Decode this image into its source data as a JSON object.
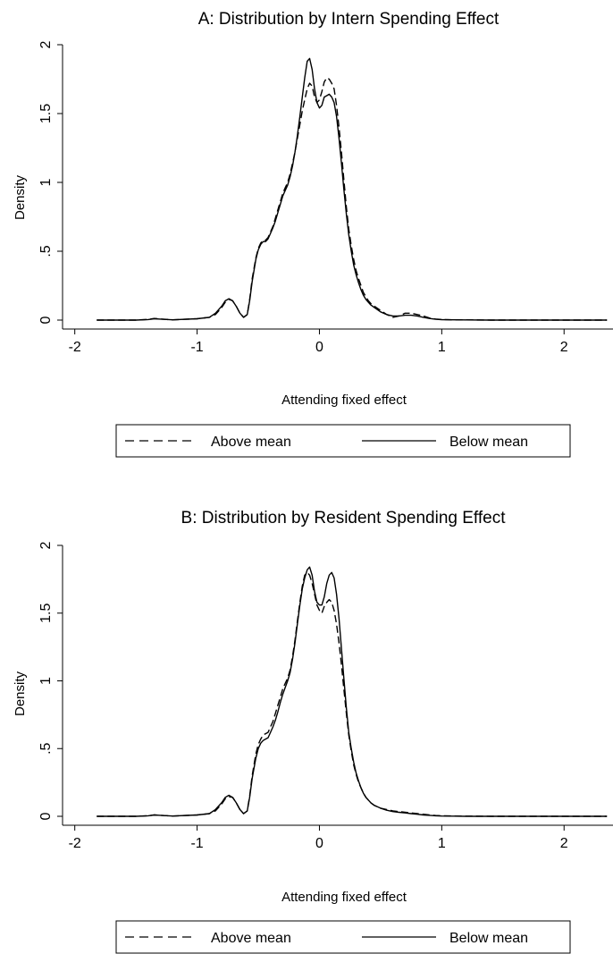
{
  "chart_data": [
    {
      "type": "line",
      "title": "A: Distribution by Intern Spending Effect",
      "xlabel": "Attending fixed effect",
      "ylabel": "Density",
      "xlim": [
        -2.1,
        2.4
      ],
      "ylim": [
        0,
        2
      ],
      "xticks": [
        -2,
        -1,
        0,
        1,
        2
      ],
      "xtick_labels": [
        "-2",
        "-1",
        "0",
        "1",
        "2"
      ],
      "yticks": [
        0,
        0.5,
        1,
        1.5,
        2
      ],
      "ytick_labels": [
        "0",
        ".5",
        "1",
        "1.5",
        "2"
      ],
      "grid": false,
      "legend_position": "bottom",
      "series": [
        {
          "name": "Above mean",
          "style": "dashed",
          "x": [
            -1.82,
            -1.5,
            -1.4,
            -1.35,
            -1.3,
            -1.2,
            -1.0,
            -0.9,
            -0.85,
            -0.8,
            -0.77,
            -0.74,
            -0.71,
            -0.68,
            -0.65,
            -0.62,
            -0.59,
            -0.57,
            -0.55,
            -0.52,
            -0.5,
            -0.48,
            -0.46,
            -0.44,
            -0.42,
            -0.4,
            -0.38,
            -0.36,
            -0.34,
            -0.32,
            -0.3,
            -0.28,
            -0.26,
            -0.24,
            -0.22,
            -0.2,
            -0.18,
            -0.16,
            -0.14,
            -0.12,
            -0.1,
            -0.08,
            -0.06,
            -0.04,
            -0.02,
            0.0,
            0.02,
            0.04,
            0.06,
            0.08,
            0.1,
            0.12,
            0.14,
            0.16,
            0.18,
            0.2,
            0.22,
            0.24,
            0.26,
            0.28,
            0.3,
            0.32,
            0.34,
            0.36,
            0.38,
            0.4,
            0.42,
            0.45,
            0.5,
            0.55,
            0.6,
            0.65,
            0.7,
            0.75,
            0.8,
            0.85,
            0.9,
            0.95,
            1.0,
            1.1,
            1.2,
            1.4,
            1.6,
            1.8,
            2.0,
            2.2,
            2.35
          ],
          "y": [
            0.0,
            0.0,
            0.005,
            0.012,
            0.008,
            0.002,
            0.01,
            0.02,
            0.04,
            0.09,
            0.13,
            0.15,
            0.14,
            0.1,
            0.05,
            0.02,
            0.04,
            0.15,
            0.3,
            0.45,
            0.52,
            0.56,
            0.58,
            0.58,
            0.6,
            0.64,
            0.68,
            0.74,
            0.8,
            0.86,
            0.92,
            0.96,
            1.0,
            1.06,
            1.14,
            1.22,
            1.32,
            1.42,
            1.52,
            1.6,
            1.68,
            1.72,
            1.7,
            1.62,
            1.58,
            1.6,
            1.66,
            1.73,
            1.76,
            1.75,
            1.72,
            1.68,
            1.56,
            1.4,
            1.22,
            1.02,
            0.82,
            0.66,
            0.54,
            0.44,
            0.36,
            0.3,
            0.25,
            0.2,
            0.17,
            0.14,
            0.12,
            0.1,
            0.07,
            0.04,
            0.02,
            0.03,
            0.05,
            0.05,
            0.04,
            0.03,
            0.015,
            0.008,
            0.004,
            0.002,
            0.001,
            0.0,
            0.0,
            0.0,
            0.0,
            0.0,
            0.0
          ]
        },
        {
          "name": "Below mean",
          "style": "solid",
          "x": [
            -1.82,
            -1.5,
            -1.4,
            -1.35,
            -1.3,
            -1.2,
            -1.0,
            -0.9,
            -0.85,
            -0.8,
            -0.77,
            -0.74,
            -0.71,
            -0.68,
            -0.65,
            -0.62,
            -0.59,
            -0.57,
            -0.55,
            -0.52,
            -0.5,
            -0.48,
            -0.46,
            -0.44,
            -0.42,
            -0.4,
            -0.38,
            -0.36,
            -0.34,
            -0.32,
            -0.3,
            -0.28,
            -0.26,
            -0.24,
            -0.22,
            -0.2,
            -0.18,
            -0.16,
            -0.14,
            -0.12,
            -0.1,
            -0.08,
            -0.06,
            -0.04,
            -0.02,
            0.0,
            0.02,
            0.04,
            0.06,
            0.08,
            0.1,
            0.12,
            0.14,
            0.16,
            0.18,
            0.2,
            0.22,
            0.24,
            0.26,
            0.28,
            0.3,
            0.32,
            0.34,
            0.36,
            0.38,
            0.4,
            0.42,
            0.45,
            0.5,
            0.55,
            0.6,
            0.65,
            0.7,
            0.75,
            0.8,
            0.85,
            0.9,
            0.95,
            1.0,
            1.1,
            1.2,
            1.4,
            1.6,
            1.8,
            2.0,
            2.2,
            2.35
          ],
          "y": [
            0.0,
            0.0,
            0.004,
            0.01,
            0.007,
            0.002,
            0.01,
            0.02,
            0.05,
            0.1,
            0.14,
            0.155,
            0.14,
            0.1,
            0.05,
            0.02,
            0.04,
            0.14,
            0.28,
            0.44,
            0.51,
            0.55,
            0.57,
            0.57,
            0.59,
            0.63,
            0.67,
            0.72,
            0.78,
            0.84,
            0.9,
            0.94,
            0.98,
            1.04,
            1.12,
            1.22,
            1.34,
            1.48,
            1.62,
            1.76,
            1.88,
            1.9,
            1.82,
            1.68,
            1.58,
            1.54,
            1.56,
            1.62,
            1.63,
            1.64,
            1.62,
            1.58,
            1.48,
            1.32,
            1.14,
            0.95,
            0.77,
            0.62,
            0.5,
            0.4,
            0.33,
            0.27,
            0.22,
            0.18,
            0.15,
            0.13,
            0.11,
            0.09,
            0.06,
            0.04,
            0.03,
            0.03,
            0.035,
            0.035,
            0.03,
            0.02,
            0.012,
            0.006,
            0.003,
            0.002,
            0.001,
            0.0,
            0.0,
            0.0,
            0.0,
            0.0,
            0.0
          ]
        }
      ]
    },
    {
      "type": "line",
      "title": "B: Distribution by Resident Spending Effect",
      "xlabel": "Attending fixed effect",
      "ylabel": "Density",
      "xlim": [
        -2.1,
        2.4
      ],
      "ylim": [
        0,
        2
      ],
      "xticks": [
        -2,
        -1,
        0,
        1,
        2
      ],
      "xtick_labels": [
        "-2",
        "-1",
        "0",
        "1",
        "2"
      ],
      "yticks": [
        0,
        0.5,
        1,
        1.5,
        2
      ],
      "ytick_labels": [
        "0",
        ".5",
        "1",
        "1.5",
        "2"
      ],
      "grid": false,
      "legend_position": "bottom",
      "series": [
        {
          "name": "Above mean",
          "style": "dashed",
          "x": [
            -1.82,
            -1.5,
            -1.4,
            -1.35,
            -1.3,
            -1.2,
            -1.0,
            -0.9,
            -0.85,
            -0.8,
            -0.77,
            -0.74,
            -0.71,
            -0.68,
            -0.65,
            -0.62,
            -0.59,
            -0.57,
            -0.55,
            -0.52,
            -0.5,
            -0.48,
            -0.46,
            -0.44,
            -0.42,
            -0.4,
            -0.38,
            -0.36,
            -0.34,
            -0.32,
            -0.3,
            -0.28,
            -0.26,
            -0.24,
            -0.22,
            -0.2,
            -0.18,
            -0.16,
            -0.14,
            -0.12,
            -0.1,
            -0.08,
            -0.06,
            -0.04,
            -0.02,
            0.0,
            0.02,
            0.04,
            0.06,
            0.08,
            0.1,
            0.12,
            0.14,
            0.16,
            0.18,
            0.2,
            0.22,
            0.24,
            0.26,
            0.28,
            0.3,
            0.32,
            0.34,
            0.36,
            0.38,
            0.4,
            0.42,
            0.45,
            0.5,
            0.55,
            0.6,
            0.65,
            0.7,
            0.75,
            0.8,
            0.85,
            0.9,
            0.95,
            1.0,
            1.1,
            1.2,
            1.4,
            1.6,
            1.8,
            2.0,
            2.2,
            2.35
          ],
          "y": [
            0.0,
            0.0,
            0.004,
            0.01,
            0.007,
            0.002,
            0.01,
            0.02,
            0.04,
            0.09,
            0.13,
            0.145,
            0.14,
            0.1,
            0.05,
            0.02,
            0.04,
            0.15,
            0.3,
            0.46,
            0.53,
            0.57,
            0.6,
            0.61,
            0.62,
            0.66,
            0.7,
            0.76,
            0.82,
            0.88,
            0.94,
            0.98,
            1.02,
            1.08,
            1.18,
            1.3,
            1.44,
            1.58,
            1.7,
            1.78,
            1.8,
            1.78,
            1.72,
            1.64,
            1.56,
            1.52,
            1.5,
            1.55,
            1.58,
            1.6,
            1.58,
            1.52,
            1.42,
            1.28,
            1.12,
            0.94,
            0.76,
            0.6,
            0.48,
            0.38,
            0.31,
            0.25,
            0.21,
            0.17,
            0.14,
            0.12,
            0.1,
            0.08,
            0.06,
            0.05,
            0.04,
            0.035,
            0.03,
            0.025,
            0.02,
            0.015,
            0.01,
            0.006,
            0.004,
            0.002,
            0.001,
            0.0,
            0.0,
            0.0,
            0.0,
            0.0,
            0.0
          ]
        },
        {
          "name": "Below mean",
          "style": "solid",
          "x": [
            -1.82,
            -1.5,
            -1.4,
            -1.35,
            -1.3,
            -1.2,
            -1.0,
            -0.9,
            -0.85,
            -0.8,
            -0.77,
            -0.74,
            -0.71,
            -0.68,
            -0.65,
            -0.62,
            -0.59,
            -0.57,
            -0.55,
            -0.52,
            -0.5,
            -0.48,
            -0.46,
            -0.44,
            -0.42,
            -0.4,
            -0.38,
            -0.36,
            -0.34,
            -0.32,
            -0.3,
            -0.28,
            -0.26,
            -0.24,
            -0.22,
            -0.2,
            -0.18,
            -0.16,
            -0.14,
            -0.12,
            -0.1,
            -0.08,
            -0.06,
            -0.04,
            -0.02,
            0.0,
            0.02,
            0.04,
            0.06,
            0.08,
            0.1,
            0.12,
            0.14,
            0.16,
            0.18,
            0.2,
            0.22,
            0.24,
            0.26,
            0.28,
            0.3,
            0.32,
            0.34,
            0.36,
            0.38,
            0.4,
            0.42,
            0.45,
            0.5,
            0.55,
            0.6,
            0.65,
            0.7,
            0.75,
            0.8,
            0.85,
            0.9,
            0.95,
            1.0,
            1.1,
            1.2,
            1.4,
            1.6,
            1.8,
            2.0,
            2.2,
            2.35
          ],
          "y": [
            0.0,
            0.0,
            0.004,
            0.01,
            0.007,
            0.002,
            0.01,
            0.02,
            0.05,
            0.1,
            0.14,
            0.155,
            0.14,
            0.1,
            0.05,
            0.02,
            0.04,
            0.14,
            0.28,
            0.43,
            0.5,
            0.54,
            0.56,
            0.57,
            0.58,
            0.62,
            0.66,
            0.71,
            0.77,
            0.84,
            0.9,
            0.95,
            1.0,
            1.06,
            1.16,
            1.28,
            1.42,
            1.56,
            1.68,
            1.76,
            1.82,
            1.84,
            1.78,
            1.66,
            1.58,
            1.56,
            1.56,
            1.62,
            1.72,
            1.78,
            1.8,
            1.76,
            1.64,
            1.46,
            1.24,
            1.02,
            0.8,
            0.62,
            0.5,
            0.4,
            0.32,
            0.26,
            0.21,
            0.17,
            0.14,
            0.12,
            0.1,
            0.08,
            0.06,
            0.045,
            0.035,
            0.03,
            0.025,
            0.02,
            0.015,
            0.01,
            0.007,
            0.004,
            0.002,
            0.001,
            0.0,
            0.0,
            0.0,
            0.0,
            0.0,
            0.0,
            0.0
          ]
        }
      ]
    }
  ]
}
